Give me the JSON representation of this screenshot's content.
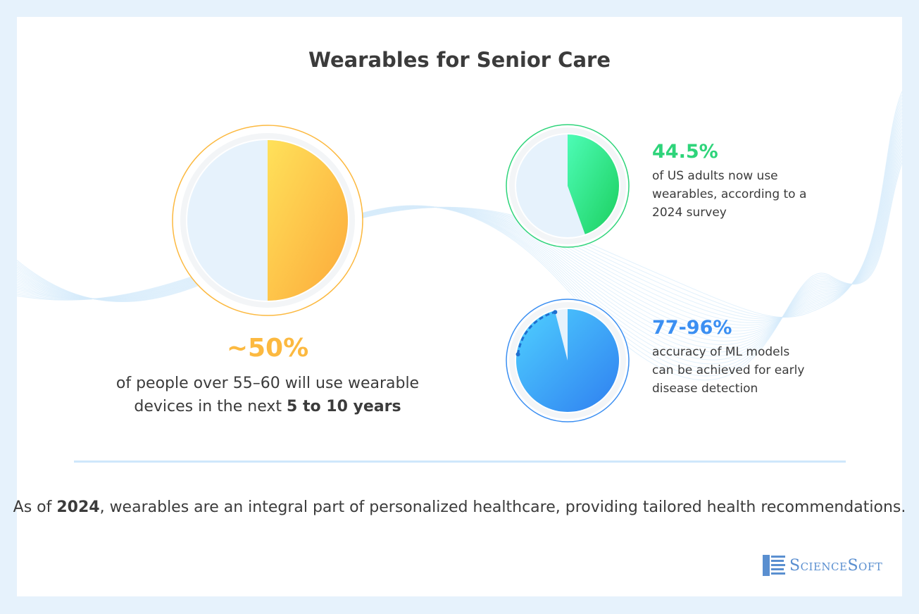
{
  "title": "Wearables for Senior Care",
  "stats": {
    "big": {
      "value": "~50%",
      "desc_line1": "of people over 55–60 will use wearable",
      "desc_line2_pre": "devices in the next ",
      "desc_line2_bold": "5 to 10 years"
    },
    "adults": {
      "value": "44.5%",
      "desc": "of US adults now use wearables, according to a 2024 survey"
    },
    "ml": {
      "value": "77-96%",
      "desc": "accuracy of ML models can be achieved for early disease detection"
    }
  },
  "footer": {
    "pre": "As of ",
    "bold": "2024",
    "post": ", wearables are an integral part of personalized healthcare, providing tailored health recommendations."
  },
  "logo": {
    "text": "ScienceSoft"
  },
  "colors": {
    "yellow": "#fcb940",
    "green": "#2ed47a",
    "blue": "#3b8ff2",
    "empty": "#e6f2fc"
  },
  "chart_data": [
    {
      "type": "pie",
      "values": [
        50,
        50
      ],
      "filled_percent": 50,
      "color": "#fcb940"
    },
    {
      "type": "pie",
      "values": [
        44.5,
        55.5
      ],
      "filled_percent": 44.5,
      "color": "#2ed47a"
    },
    {
      "type": "pie",
      "values": [
        96,
        4
      ],
      "filled_percent": 96,
      "range_percent": [
        77,
        96
      ],
      "color": "#3b8ff2"
    }
  ]
}
